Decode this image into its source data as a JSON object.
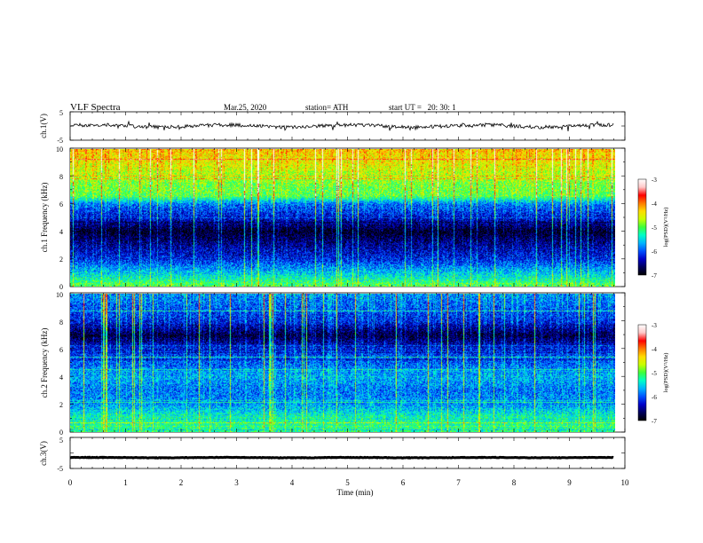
{
  "header": {
    "title": "VLF Spectra",
    "date": "Mar.25, 2020",
    "station": "station= ATH",
    "start": "start UT =   20: 30: 1"
  },
  "chart_data": [
    {
      "type": "line",
      "panel": "ch1-waveform",
      "ylabel": "ch.1(V)",
      "ylim": [
        -5,
        5
      ],
      "yticks": [
        "5",
        "-5"
      ],
      "baseline_v": 0.0,
      "xlim_min": [
        0,
        9.8
      ]
    },
    {
      "type": "heatmap",
      "panel": "ch1-spectrogram",
      "ylabel": "ch.1 Frequency (kHz)",
      "ylim_khz": [
        0,
        10
      ],
      "yticks": [
        "0",
        "2",
        "4",
        "6",
        "8",
        "10"
      ],
      "xlim_min": [
        0,
        9.8
      ],
      "colorbar": {
        "label": "log(PSD)(V²/Hz)",
        "range": [
          -7,
          -3
        ],
        "ticks": [
          "-3",
          "-4",
          "-5",
          "-6",
          "-7"
        ]
      },
      "mean_level_profile": [
        {
          "khz": 0.0,
          "log_psd": -5.0
        },
        {
          "khz": 1.0,
          "log_psd": -5.6
        },
        {
          "khz": 2.0,
          "log_psd": -6.2
        },
        {
          "khz": 3.0,
          "log_psd": -6.5
        },
        {
          "khz": 4.0,
          "log_psd": -6.9
        },
        {
          "khz": 5.0,
          "log_psd": -6.3
        },
        {
          "khz": 6.0,
          "log_psd": -5.9
        },
        {
          "khz": 6.6,
          "log_psd": -5.0
        },
        {
          "khz": 7.5,
          "log_psd": -4.9
        },
        {
          "khz": 8.5,
          "log_psd": -4.6
        },
        {
          "khz": 10.0,
          "log_psd": -4.3
        }
      ]
    },
    {
      "type": "heatmap",
      "panel": "ch2-spectrogram",
      "ylabel": "ch.2 Frequency (kHz)",
      "ylim_khz": [
        0,
        10
      ],
      "yticks": [
        "0",
        "2",
        "4",
        "6",
        "8",
        "10"
      ],
      "xlim_min": [
        0,
        9.8
      ],
      "colorbar": {
        "label": "log(PSD)(V²/Hz)",
        "range": [
          -7,
          -3
        ],
        "ticks": [
          "-3",
          "-4",
          "-5",
          "-6",
          "-7"
        ]
      },
      "mean_level_profile": [
        {
          "khz": 0.0,
          "log_psd": -5.2
        },
        {
          "khz": 1.0,
          "log_psd": -5.3
        },
        {
          "khz": 2.0,
          "log_psd": -5.8
        },
        {
          "khz": 3.0,
          "log_psd": -5.9
        },
        {
          "khz": 4.0,
          "log_psd": -5.7
        },
        {
          "khz": 5.0,
          "log_psd": -6.0
        },
        {
          "khz": 6.0,
          "log_psd": -6.2
        },
        {
          "khz": 7.0,
          "log_psd": -6.8
        },
        {
          "khz": 8.0,
          "log_psd": -6.2
        },
        {
          "khz": 10.0,
          "log_psd": -5.8
        }
      ]
    },
    {
      "type": "line",
      "panel": "ch3-waveform",
      "ylabel": "ch.3(V)",
      "ylim": [
        -5,
        5
      ],
      "yticks": [
        "5",
        "-5"
      ],
      "baseline_v": -1.5,
      "xlim_min": [
        0,
        9.8
      ]
    }
  ],
  "x_axis": {
    "label": "Time (min)",
    "range": [
      0,
      10
    ],
    "ticks": [
      "0",
      "1",
      "2",
      "3",
      "4",
      "5",
      "6",
      "7",
      "8",
      "9",
      "10"
    ]
  },
  "colors": {
    "colormap": [
      "#000000",
      "#00005a",
      "#0000c8",
      "#0050ff",
      "#00b4ff",
      "#00ffc8",
      "#3cff3c",
      "#c8ff00",
      "#ffdc00",
      "#ff7800",
      "#ff0000",
      "#ffc8c8",
      "#ffffff"
    ],
    "trace": "#000000"
  }
}
